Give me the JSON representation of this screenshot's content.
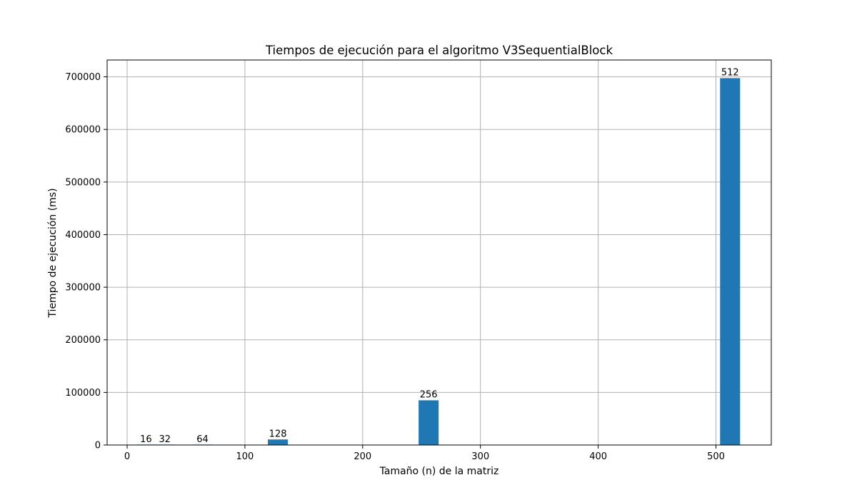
{
  "chart_data": {
    "type": "bar",
    "title": "Tiempos de ejecución para el algoritmo V3SequentialBlock",
    "xlabel": "Tamaño (n) de la matriz",
    "ylabel": "Tiempo de ejecución (ms)",
    "x": [
      16,
      32,
      64,
      128,
      256,
      512
    ],
    "values": [
      2,
      14,
      150,
      10500,
      85000,
      697500
    ],
    "bar_labels": [
      "16",
      "32",
      "64",
      "128",
      "256",
      "512"
    ],
    "bar_width": 17,
    "xlim": [
      -17,
      547
    ],
    "ylim": [
      0,
      732000
    ],
    "xticks": [
      0,
      100,
      200,
      300,
      400,
      500
    ],
    "xtick_labels": [
      "0",
      "100",
      "200",
      "300",
      "400",
      "500"
    ],
    "yticks": [
      0,
      100000,
      200000,
      300000,
      400000,
      500000,
      600000,
      700000
    ],
    "ytick_labels": [
      "0",
      "100000",
      "200000",
      "300000",
      "400000",
      "500000",
      "600000",
      "700000"
    ],
    "grid": true,
    "colors": {
      "bar": "#1f77b4",
      "grid": "#b0b0b0",
      "axes": "#000000",
      "background": "#ffffff"
    }
  }
}
